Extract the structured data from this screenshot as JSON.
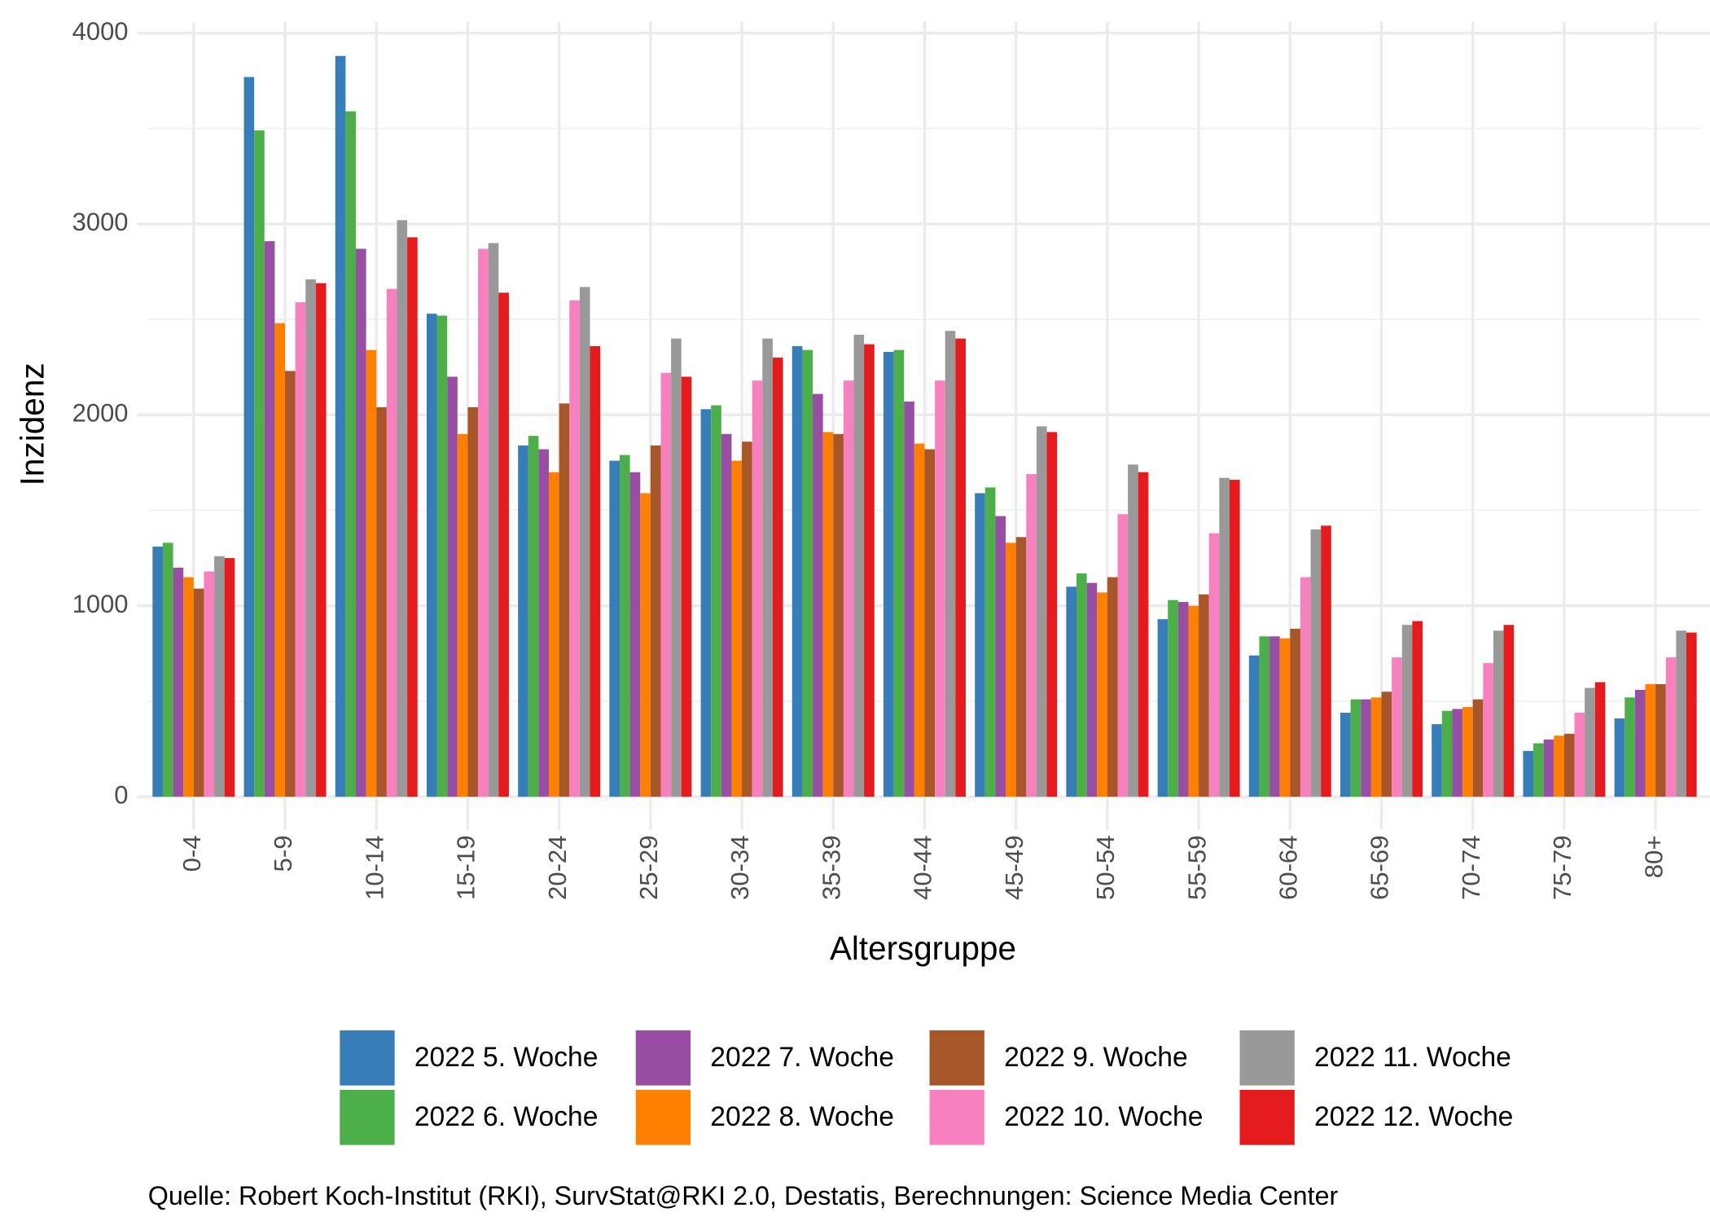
{
  "chart_data": {
    "type": "bar",
    "x_label": "Altersgruppe",
    "y_label": "Inzidenz",
    "caption": "Quelle: Robert Koch-Institut (RKI), SurvStat@RKI 2.0, Destatis, Berechnungen: Science Media Center",
    "categories": [
      "0-4",
      "5-9",
      "10-14",
      "15-19",
      "20-24",
      "25-29",
      "30-34",
      "35-39",
      "40-44",
      "45-49",
      "50-54",
      "55-59",
      "60-64",
      "65-69",
      "70-74",
      "75-79",
      "80+"
    ],
    "ylim": [
      0,
      4000
    ],
    "yticks": [
      0,
      1000,
      2000,
      3000,
      4000
    ],
    "grid": true,
    "legend": "bottom",
    "series": [
      {
        "name": "2022 5. Woche",
        "color": "#377eb8",
        "values": [
          1310,
          3770,
          3880,
          2530,
          1840,
          1760,
          2030,
          2360,
          2330,
          1590,
          1100,
          930,
          740,
          440,
          380,
          240,
          410
        ]
      },
      {
        "name": "2022 6. Woche",
        "color": "#4daf4a",
        "values": [
          1330,
          3490,
          3590,
          2520,
          1890,
          1790,
          2050,
          2340,
          2340,
          1620,
          1170,
          1030,
          840,
          510,
          450,
          280,
          520
        ]
      },
      {
        "name": "2022 7. Woche",
        "color": "#984ea3",
        "values": [
          1200,
          2910,
          2870,
          2200,
          1820,
          1700,
          1900,
          2110,
          2070,
          1470,
          1120,
          1020,
          840,
          510,
          460,
          300,
          560
        ]
      },
      {
        "name": "2022 8. Woche",
        "color": "#ff7f00",
        "values": [
          1150,
          2480,
          2340,
          1900,
          1700,
          1590,
          1760,
          1910,
          1850,
          1330,
          1070,
          1000,
          830,
          520,
          470,
          320,
          590
        ]
      },
      {
        "name": "2022 9. Woche",
        "color": "#a65628",
        "values": [
          1090,
          2230,
          2040,
          2040,
          2060,
          1840,
          1860,
          1900,
          1820,
          1360,
          1150,
          1060,
          880,
          550,
          510,
          330,
          590
        ]
      },
      {
        "name": "2022 10. Woche",
        "color": "#f781bf",
        "values": [
          1180,
          2590,
          2660,
          2870,
          2600,
          2220,
          2180,
          2180,
          2180,
          1690,
          1480,
          1380,
          1150,
          730,
          700,
          440,
          730
        ]
      },
      {
        "name": "2022 11. Woche",
        "color": "#999999",
        "values": [
          1260,
          2710,
          3020,
          2900,
          2670,
          2400,
          2400,
          2420,
          2440,
          1940,
          1740,
          1670,
          1400,
          900,
          870,
          570,
          870
        ]
      },
      {
        "name": "2022 12. Woche",
        "color": "#e41a1c",
        "values": [
          1250,
          2690,
          2930,
          2640,
          2360,
          2200,
          2300,
          2370,
          2400,
          1910,
          1700,
          1660,
          1420,
          920,
          900,
          600,
          860
        ]
      }
    ]
  }
}
